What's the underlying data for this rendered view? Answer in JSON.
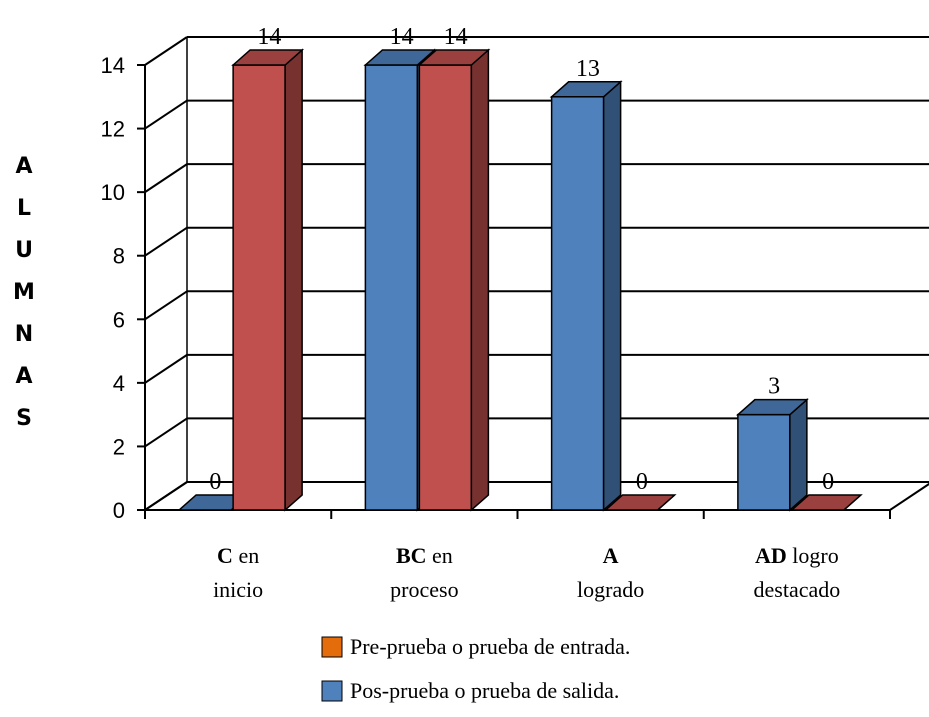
{
  "chart_data": {
    "type": "bar",
    "ylabel": "ALUMNAS",
    "ylim": [
      0,
      14
    ],
    "yticks": [
      0,
      2,
      4,
      6,
      8,
      10,
      12,
      14
    ],
    "grid": true,
    "legend_position": "bottom",
    "categories": [
      {
        "bold": "C",
        "rest": " en",
        "line2": "inicio"
      },
      {
        "bold": "BC",
        "rest": " en",
        "line2": "proceso"
      },
      {
        "bold": "A",
        "rest": "",
        "line2": "logrado"
      },
      {
        "bold": "AD",
        "rest": " logro",
        "line2": "destacado"
      }
    ],
    "series": [
      {
        "name": "Pos-prueba o prueba de salida.",
        "color": "#4F81BD",
        "values": [
          0,
          14,
          13,
          3
        ]
      },
      {
        "name": "Pre-prueba o prueba de entrada.",
        "color": "#C0504D",
        "values": [
          14,
          14,
          0,
          0
        ]
      }
    ],
    "legend": [
      {
        "label": "Pre-prueba o prueba de entrada.",
        "color": "#E46C0A"
      },
      {
        "label": "Pos-prueba o prueba de salida.",
        "color": "#4F81BD"
      }
    ]
  }
}
